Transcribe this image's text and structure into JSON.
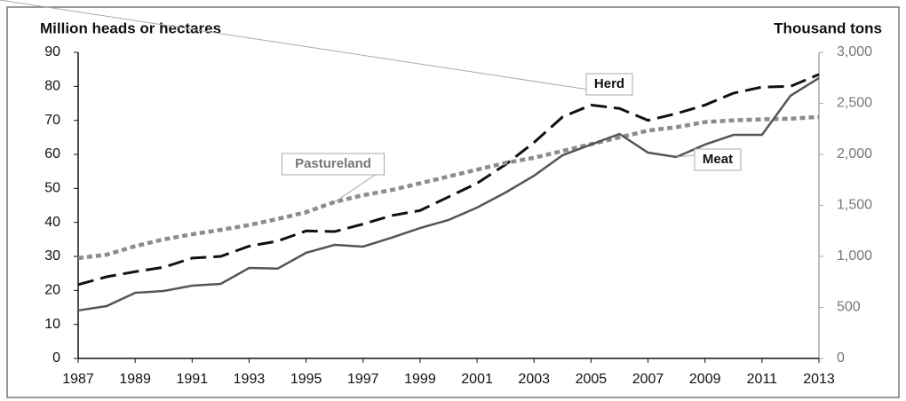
{
  "chart_data": {
    "type": "line",
    "y_label": "Million heads or hectares",
    "y2_label": "Thousand tons",
    "x": [
      1987,
      1988,
      1989,
      1990,
      1991,
      1992,
      1993,
      1994,
      1995,
      1996,
      1997,
      1998,
      1999,
      2000,
      2001,
      2002,
      2003,
      2004,
      2005,
      2006,
      2007,
      2008,
      2009,
      2010,
      2011,
      2012,
      2013
    ],
    "xlim": [
      1987,
      2013
    ],
    "xticks": [
      1987,
      1989,
      1991,
      1993,
      1995,
      1997,
      1999,
      2001,
      2003,
      2005,
      2007,
      2009,
      2011,
      2013
    ],
    "ylim": [
      0,
      90
    ],
    "yticks": [
      0,
      10,
      20,
      30,
      40,
      50,
      60,
      70,
      80,
      90
    ],
    "y2lim": [
      0,
      3000
    ],
    "y2ticks": [
      0,
      500,
      {
        "value": 1000,
        "label": "1,000"
      },
      {
        "value": 1500,
        "label": "1,500"
      },
      {
        "value": 2000,
        "label": "2,000"
      },
      {
        "value": 2500,
        "label": "2,500"
      },
      {
        "value": 3000,
        "label": "3,000"
      }
    ],
    "series": [
      {
        "name": "Herd",
        "color": "#111111",
        "values": [
          21.7,
          24,
          25.5,
          26.8,
          29.5,
          30,
          33,
          34.5,
          37.5,
          37.3,
          39.5,
          42,
          43.5,
          47.5,
          51.5,
          57,
          63.5,
          71,
          74.5,
          73.5,
          70,
          72,
          74.5,
          78,
          79.8,
          80,
          83.5
        ]
      },
      {
        "name": "Pastureland",
        "color": "#8c8c8c",
        "values": [
          29.5,
          30.5,
          33,
          35,
          36.5,
          37.8,
          39.2,
          41,
          43,
          46,
          48,
          49.5,
          51.5,
          53.5,
          55.5,
          57.5,
          59,
          61,
          63,
          65,
          67,
          68,
          69.5,
          70,
          70.3,
          70.5,
          71
        ]
      },
      {
        "name": "Meat",
        "color": "#555555",
        "axis": "y2",
        "values": [
          470,
          513,
          643,
          661,
          713,
          730,
          887,
          880,
          1035,
          1113,
          1096,
          1183,
          1278,
          1357,
          1478,
          1626,
          1791,
          1991,
          2096,
          2200,
          2017,
          1974,
          2096,
          2191,
          2191,
          2574,
          2748
        ]
      }
    ]
  }
}
